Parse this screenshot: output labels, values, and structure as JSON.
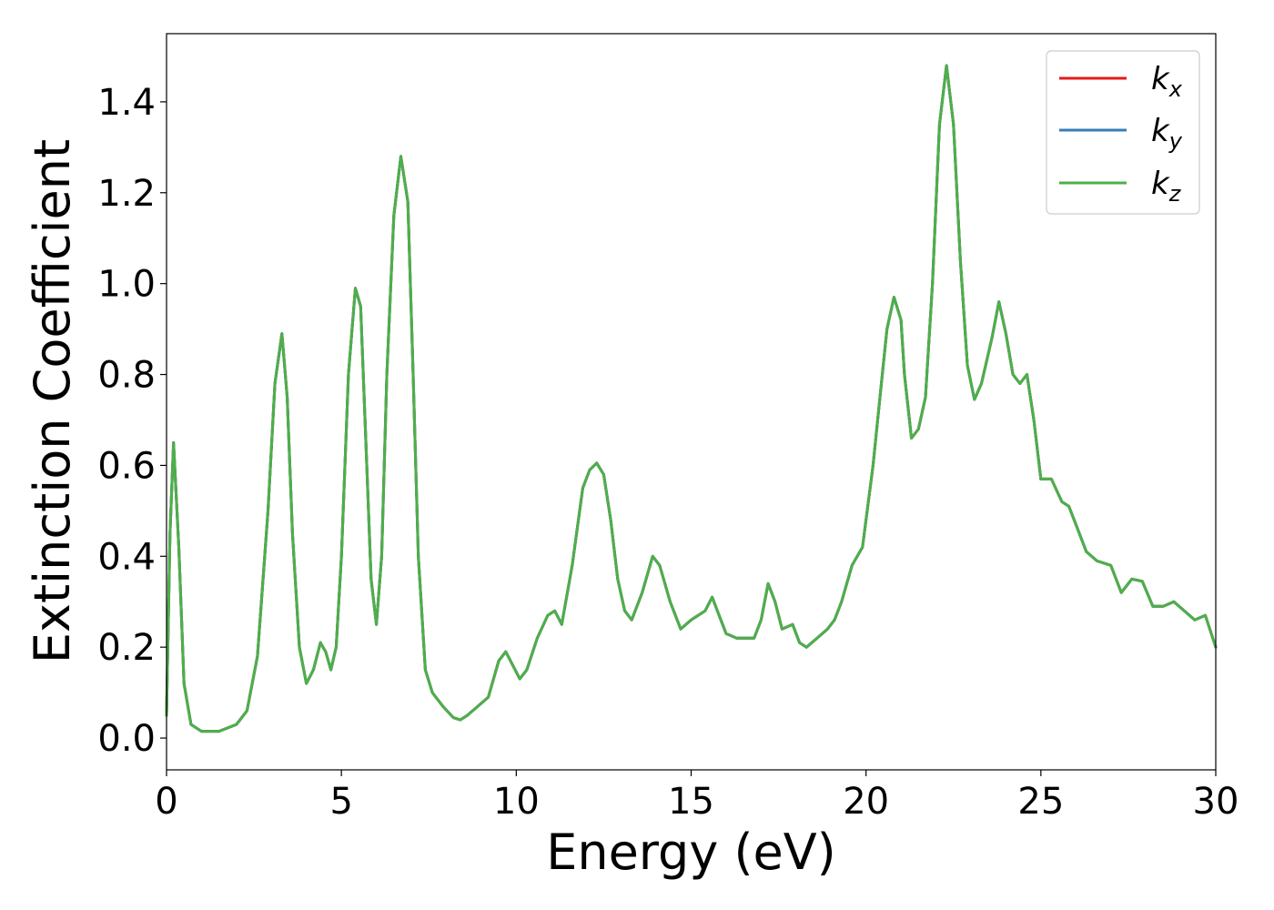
{
  "chart_data": {
    "type": "line",
    "title": "",
    "xlabel": "Energy (eV)",
    "ylabel": "Extinction Coefficient",
    "xlim": [
      0,
      30
    ],
    "ylim": [
      -0.07,
      1.55
    ],
    "xticks": [
      0,
      5,
      10,
      15,
      20,
      25,
      30
    ],
    "xtick_labels": [
      "0",
      "5",
      "10",
      "15",
      "20",
      "25",
      "30"
    ],
    "yticks": [
      0.0,
      0.2,
      0.4,
      0.6,
      0.8,
      1.0,
      1.2,
      1.4
    ],
    "ytick_labels": [
      "0.0",
      "0.2",
      "0.4",
      "0.6",
      "0.8",
      "1.0",
      "1.2",
      "1.4"
    ],
    "grid": false,
    "legend_position": "top-right",
    "x": [
      0,
      0.1,
      0.2,
      0.35,
      0.5,
      0.7,
      1.0,
      1.5,
      2.0,
      2.3,
      2.6,
      2.9,
      3.1,
      3.3,
      3.45,
      3.6,
      3.8,
      4.0,
      4.2,
      4.4,
      4.55,
      4.7,
      4.85,
      5.0,
      5.2,
      5.4,
      5.55,
      5.7,
      5.85,
      6.0,
      6.15,
      6.3,
      6.5,
      6.7,
      6.9,
      7.05,
      7.2,
      7.4,
      7.6,
      7.9,
      8.2,
      8.4,
      8.6,
      8.9,
      9.2,
      9.5,
      9.7,
      9.9,
      10.1,
      10.3,
      10.6,
      10.9,
      11.1,
      11.3,
      11.6,
      11.9,
      12.1,
      12.3,
      12.5,
      12.7,
      12.9,
      13.1,
      13.3,
      13.6,
      13.9,
      14.1,
      14.4,
      14.7,
      15.0,
      15.2,
      15.4,
      15.6,
      15.8,
      16.0,
      16.3,
      16.6,
      16.8,
      17.0,
      17.2,
      17.4,
      17.6,
      17.9,
      18.1,
      18.3,
      18.6,
      18.9,
      19.1,
      19.3,
      19.6,
      19.9,
      20.2,
      20.4,
      20.6,
      20.8,
      21.0,
      21.1,
      21.3,
      21.5,
      21.7,
      21.9,
      22.1,
      22.3,
      22.5,
      22.7,
      22.9,
      23.1,
      23.3,
      23.6,
      23.8,
      24.0,
      24.2,
      24.4,
      24.6,
      24.8,
      25.0,
      25.3,
      25.6,
      25.8,
      26.0,
      26.3,
      26.6,
      26.8,
      27.0,
      27.3,
      27.6,
      27.9,
      28.2,
      28.5,
      28.8,
      29.1,
      29.4,
      29.7,
      30.0
    ],
    "y": [
      0.05,
      0.45,
      0.65,
      0.42,
      0.12,
      0.03,
      0.015,
      0.015,
      0.03,
      0.06,
      0.18,
      0.5,
      0.78,
      0.89,
      0.75,
      0.45,
      0.2,
      0.12,
      0.15,
      0.21,
      0.19,
      0.15,
      0.2,
      0.4,
      0.8,
      0.99,
      0.95,
      0.65,
      0.35,
      0.25,
      0.4,
      0.8,
      1.15,
      1.28,
      1.18,
      0.8,
      0.4,
      0.15,
      0.1,
      0.07,
      0.045,
      0.04,
      0.05,
      0.07,
      0.09,
      0.17,
      0.19,
      0.16,
      0.13,
      0.15,
      0.22,
      0.27,
      0.28,
      0.25,
      0.38,
      0.55,
      0.59,
      0.605,
      0.58,
      0.48,
      0.35,
      0.28,
      0.26,
      0.32,
      0.4,
      0.38,
      0.3,
      0.24,
      0.26,
      0.27,
      0.28,
      0.31,
      0.27,
      0.23,
      0.22,
      0.22,
      0.22,
      0.26,
      0.34,
      0.3,
      0.24,
      0.25,
      0.21,
      0.2,
      0.22,
      0.24,
      0.26,
      0.3,
      0.38,
      0.42,
      0.6,
      0.75,
      0.9,
      0.97,
      0.92,
      0.8,
      0.66,
      0.68,
      0.75,
      1.0,
      1.35,
      1.48,
      1.35,
      1.05,
      0.82,
      0.745,
      0.78,
      0.88,
      0.96,
      0.89,
      0.8,
      0.78,
      0.8,
      0.7,
      0.57,
      0.57,
      0.52,
      0.51,
      0.47,
      0.41,
      0.39,
      0.385,
      0.38,
      0.32,
      0.35,
      0.345,
      0.29,
      0.29,
      0.3,
      0.28,
      0.26,
      0.27,
      0.2
    ],
    "series": [
      {
        "name": "k",
        "subscript": "x",
        "color": "#e41a1c"
      },
      {
        "name": "k",
        "subscript": "y",
        "color": "#377eb8"
      },
      {
        "name": "k",
        "subscript": "z",
        "color": "#4daf4a"
      }
    ]
  }
}
